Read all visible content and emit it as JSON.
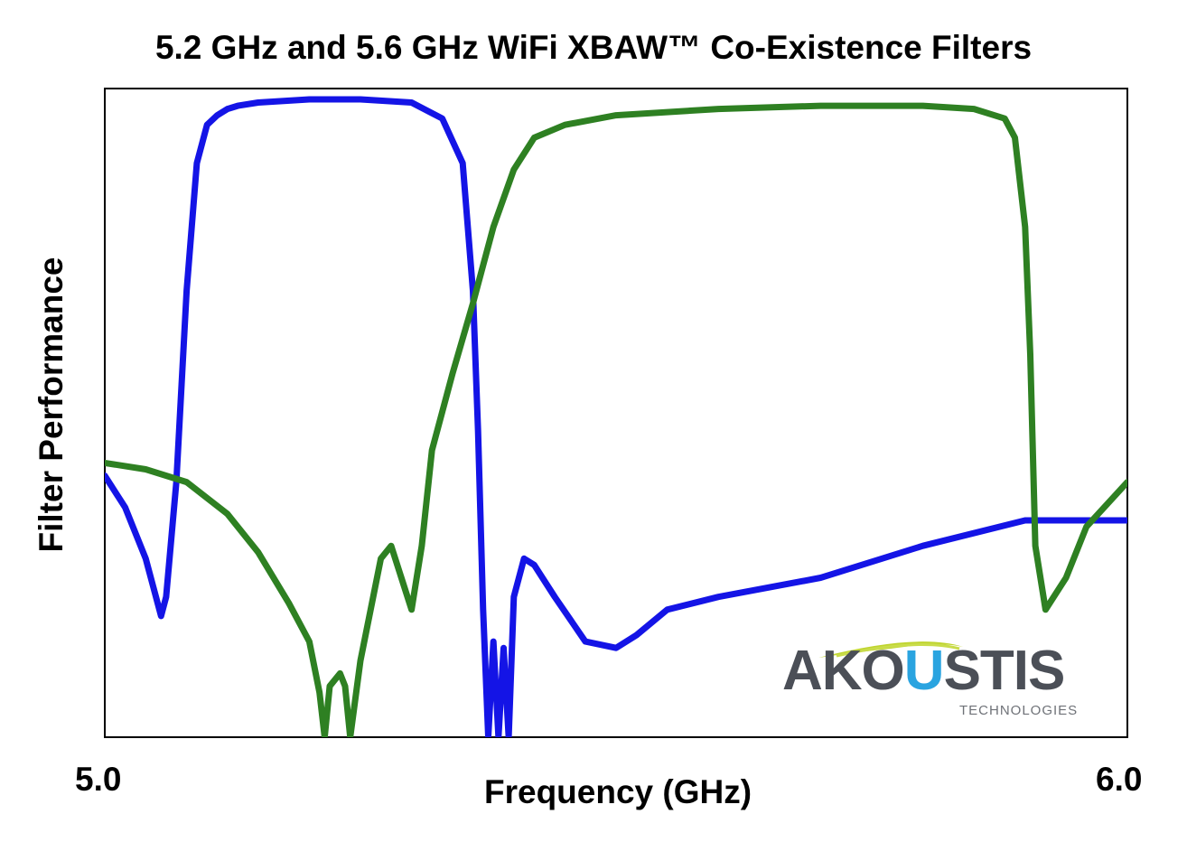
{
  "chart_data": {
    "type": "line",
    "title": "5.2 GHz and 5.6 GHz WiFi XBAW™ Co-Existence Filters",
    "xlabel": "Frequency (GHz)",
    "ylabel": "Filter Performance",
    "xlim": [
      5.0,
      6.0
    ],
    "ylim": [
      0,
      100
    ],
    "x_ticks": [
      "5.0",
      "6.0"
    ],
    "grid": false,
    "series": [
      {
        "color": "#1414e6",
        "x": [
          5.0,
          5.02,
          5.04,
          5.055,
          5.06,
          5.07,
          5.08,
          5.09,
          5.1,
          5.11,
          5.12,
          5.13,
          5.15,
          5.2,
          5.25,
          5.3,
          5.33,
          5.35,
          5.36,
          5.365,
          5.37,
          5.375,
          5.38,
          5.385,
          5.39,
          5.395,
          5.4,
          5.41,
          5.42,
          5.44,
          5.47,
          5.5,
          5.52,
          5.55,
          5.6,
          5.7,
          5.8,
          5.9,
          6.0
        ],
        "y": [
          41,
          36,
          28,
          19,
          22,
          40,
          70,
          90,
          96,
          97.5,
          98.5,
          99,
          99.5,
          100,
          100,
          99.5,
          97,
          90,
          70,
          48,
          20,
          0,
          15,
          0,
          14,
          0,
          22,
          28,
          27,
          22,
          15,
          14,
          16,
          20,
          22,
          25,
          30,
          34,
          34
        ]
      },
      {
        "color": "#2e8022",
        "x": [
          5.0,
          5.04,
          5.08,
          5.12,
          5.15,
          5.18,
          5.2,
          5.21,
          5.215,
          5.22,
          5.23,
          5.235,
          5.24,
          5.25,
          5.26,
          5.27,
          5.28,
          5.29,
          5.3,
          5.31,
          5.32,
          5.34,
          5.36,
          5.38,
          5.4,
          5.42,
          5.45,
          5.5,
          5.6,
          5.7,
          5.8,
          5.85,
          5.88,
          5.89,
          5.9,
          5.905,
          5.91,
          5.92,
          5.94,
          5.96,
          6.0
        ],
        "y": [
          43,
          42,
          40,
          35,
          29,
          21,
          15,
          7,
          0,
          8,
          10,
          8,
          0,
          12,
          20,
          28,
          30,
          25,
          20,
          30,
          45,
          57,
          68,
          80,
          89,
          94,
          96,
          97.5,
          98.5,
          99,
          99,
          98.5,
          97,
          94,
          80,
          60,
          30,
          20,
          25,
          33,
          40
        ]
      }
    ]
  },
  "logo": {
    "word_left": "AKO",
    "word_u": "U",
    "word_right": "STIS",
    "subtitle": "TECHNOLOGIES",
    "gray": "#4b4f57",
    "blue": "#2aa4e0",
    "lime": "#bfd42e"
  }
}
